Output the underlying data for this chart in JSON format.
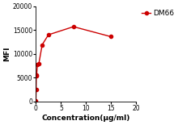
{
  "x": [
    0,
    0.04,
    0.08,
    0.15,
    0.3,
    0.6,
    1.25,
    2.5,
    7.5,
    15
  ],
  "y": [
    100,
    2500,
    5400,
    5600,
    7800,
    8000,
    11900,
    14000,
    15700,
    13600
  ],
  "line_color": "#cc0000",
  "marker": "o",
  "marker_size": 3,
  "legend_label": "DM66",
  "xlabel": "Concentration(μg/ml)",
  "ylabel": "MFI",
  "xlim": [
    0,
    20
  ],
  "ylim": [
    0,
    20000
  ],
  "yticks": [
    0,
    5000,
    10000,
    15000,
    20000
  ],
  "xticks": [
    0,
    5,
    10,
    15,
    20
  ],
  "bg_color": "#ffffff",
  "axis_fontsize": 6.5,
  "tick_fontsize": 5.5,
  "legend_fontsize": 6.5,
  "linewidth": 1.0
}
